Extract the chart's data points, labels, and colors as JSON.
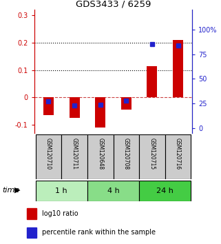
{
  "title": "GDS3433 / 6259",
  "samples": [
    "GSM120710",
    "GSM120711",
    "GSM120648",
    "GSM120708",
    "GSM120715",
    "GSM120716"
  ],
  "log10_ratio": [
    -0.065,
    -0.075,
    -0.11,
    -0.045,
    0.115,
    0.21
  ],
  "percentile_rank": [
    27,
    23,
    24,
    28,
    85,
    84
  ],
  "groups": [
    {
      "label": "1 h",
      "indices": [
        0,
        1
      ],
      "color": "#bbeebb"
    },
    {
      "label": "4 h",
      "indices": [
        2,
        3
      ],
      "color": "#88dd88"
    },
    {
      "label": "24 h",
      "indices": [
        4,
        5
      ],
      "color": "#44cc44"
    }
  ],
  "ylim_left": [
    -0.13,
    0.32
  ],
  "ylim_right": [
    -4.875,
    120
  ],
  "yticks_left": [
    -0.1,
    0.0,
    0.1,
    0.2,
    0.3
  ],
  "yticks_right": [
    0,
    25,
    50,
    75,
    100
  ],
  "ytick_labels_left": [
    "-0.1",
    "0",
    "0.1",
    "0.2",
    "0.3"
  ],
  "ytick_labels_right": [
    "0",
    "25",
    "50",
    "75",
    "100%"
  ],
  "hlines": [
    0.1,
    0.2
  ],
  "bar_color_red": "#cc0000",
  "bar_color_blue": "#2222cc",
  "sample_box_color": "#cccccc",
  "zero_line_color": "#cc4444",
  "bg_color": "#ffffff",
  "time_label": "time",
  "legend_red": "log10 ratio",
  "legend_blue": "percentile rank within the sample"
}
